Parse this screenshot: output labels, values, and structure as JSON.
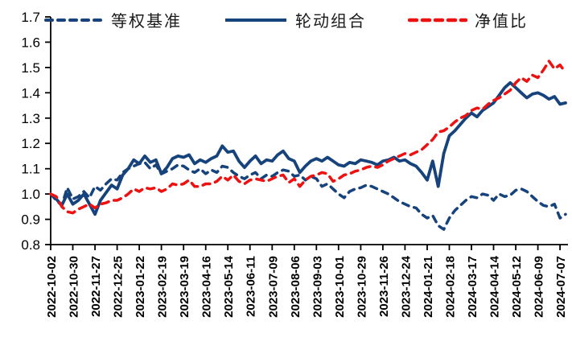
{
  "page": {
    "background_color": "#ffffff",
    "accent_blue": "#17437d",
    "accent_red": "#ee1111"
  },
  "legend": {
    "position": "top-center",
    "items": [
      "等权基准",
      "轮动组合",
      "净值比"
    ]
  },
  "chart_data": {
    "type": "line",
    "title": "",
    "xlabel": "",
    "ylabel": "",
    "ylim": [
      0.8,
      1.7
    ],
    "y_ticks": [
      0.8,
      0.9,
      1.0,
      1.1,
      1.2,
      1.3,
      1.4,
      1.5,
      1.6,
      1.7
    ],
    "grid": false,
    "legend_position": "top",
    "x_unit": "week",
    "x_tick_every": 4,
    "x_tick_labels": [
      "2022-10-02",
      "2022-10-30",
      "2022-11-27",
      "2022-12-25",
      "2023-01-22",
      "2023-02-19",
      "2023-03-19",
      "2023-04-16",
      "2023-05-14",
      "2023-06-11",
      "2023-07-09",
      "2023-08-06",
      "2023-09-03",
      "2023-10-01",
      "2023-10-29",
      "2023-11-26",
      "2023-12-24",
      "2024-01-21",
      "2024-02-18",
      "2024-03-17",
      "2024-04-14",
      "2024-05-12",
      "2024-06-09",
      "2024-07-07"
    ],
    "series": [
      {
        "name": "等权基准",
        "color": "#17437d",
        "line_style": "dashed",
        "values": [
          1.0,
          0.975,
          0.955,
          1.025,
          0.98,
          0.99,
          1.01,
          0.985,
          1.03,
          1.015,
          1.04,
          1.06,
          1.055,
          1.085,
          1.1,
          1.11,
          1.12,
          1.125,
          1.1,
          1.115,
          1.08,
          1.09,
          1.1,
          1.115,
          1.11,
          1.095,
          1.085,
          1.1,
          1.08,
          1.095,
          1.085,
          1.11,
          1.105,
          1.085,
          1.07,
          1.06,
          1.075,
          1.085,
          1.06,
          1.075,
          1.07,
          1.085,
          1.095,
          1.09,
          1.07,
          1.075,
          1.055,
          1.07,
          1.06,
          1.03,
          1.04,
          1.02,
          1.0,
          0.985,
          1.01,
          1.02,
          1.025,
          1.035,
          1.03,
          1.02,
          1.01,
          1.0,
          0.985,
          0.97,
          0.96,
          0.95,
          0.945,
          0.92,
          0.905,
          0.915,
          0.875,
          0.86,
          0.905,
          0.935,
          0.955,
          0.975,
          0.99,
          0.985,
          1.0,
          0.995,
          0.975,
          1.0,
          0.99,
          0.995,
          1.015,
          1.02,
          1.01,
          0.99,
          0.97,
          0.955,
          0.95,
          0.96,
          0.905,
          0.92
        ]
      },
      {
        "name": "轮动组合",
        "color": "#17437d",
        "line_style": "solid",
        "values": [
          1.0,
          0.98,
          0.955,
          1.0,
          0.96,
          0.975,
          1.0,
          0.96,
          0.92,
          0.975,
          1.005,
          1.035,
          1.02,
          1.075,
          1.1,
          1.135,
          1.12,
          1.15,
          1.125,
          1.135,
          1.08,
          1.105,
          1.14,
          1.15,
          1.145,
          1.155,
          1.12,
          1.135,
          1.125,
          1.14,
          1.15,
          1.19,
          1.165,
          1.17,
          1.13,
          1.105,
          1.13,
          1.15,
          1.12,
          1.135,
          1.13,
          1.155,
          1.17,
          1.14,
          1.13,
          1.085,
          1.11,
          1.13,
          1.14,
          1.13,
          1.145,
          1.13,
          1.115,
          1.11,
          1.125,
          1.12,
          1.135,
          1.13,
          1.125,
          1.115,
          1.13,
          1.135,
          1.145,
          1.13,
          1.135,
          1.12,
          1.11,
          1.085,
          1.055,
          1.13,
          1.03,
          1.16,
          1.23,
          1.25,
          1.275,
          1.3,
          1.32,
          1.305,
          1.33,
          1.345,
          1.36,
          1.39,
          1.42,
          1.44,
          1.42,
          1.4,
          1.38,
          1.395,
          1.4,
          1.39,
          1.375,
          1.385,
          1.355,
          1.36
        ]
      },
      {
        "name": "净值比",
        "color": "#ee1111",
        "line_style": "dashed",
        "values": [
          1.0,
          0.99,
          0.95,
          0.93,
          0.925,
          0.94,
          0.95,
          0.96,
          0.945,
          0.96,
          0.965,
          0.975,
          0.975,
          0.985,
          1.0,
          1.02,
          1.01,
          1.025,
          1.02,
          1.025,
          1.01,
          1.02,
          1.04,
          1.035,
          1.04,
          1.055,
          1.03,
          1.03,
          1.04,
          1.04,
          1.05,
          1.07,
          1.055,
          1.075,
          1.05,
          1.04,
          1.055,
          1.06,
          1.055,
          1.05,
          1.06,
          1.07,
          1.075,
          1.045,
          1.06,
          1.03,
          1.055,
          1.07,
          1.075,
          1.085,
          1.08,
          1.05,
          1.06,
          1.075,
          1.08,
          1.09,
          1.095,
          1.105,
          1.11,
          1.105,
          1.115,
          1.13,
          1.14,
          1.15,
          1.16,
          1.155,
          1.165,
          1.175,
          1.195,
          1.215,
          1.245,
          1.25,
          1.265,
          1.285,
          1.3,
          1.31,
          1.33,
          1.34,
          1.335,
          1.355,
          1.37,
          1.38,
          1.395,
          1.41,
          1.44,
          1.46,
          1.445,
          1.47,
          1.46,
          1.49,
          1.525,
          1.495,
          1.51,
          1.48
        ]
      }
    ]
  }
}
